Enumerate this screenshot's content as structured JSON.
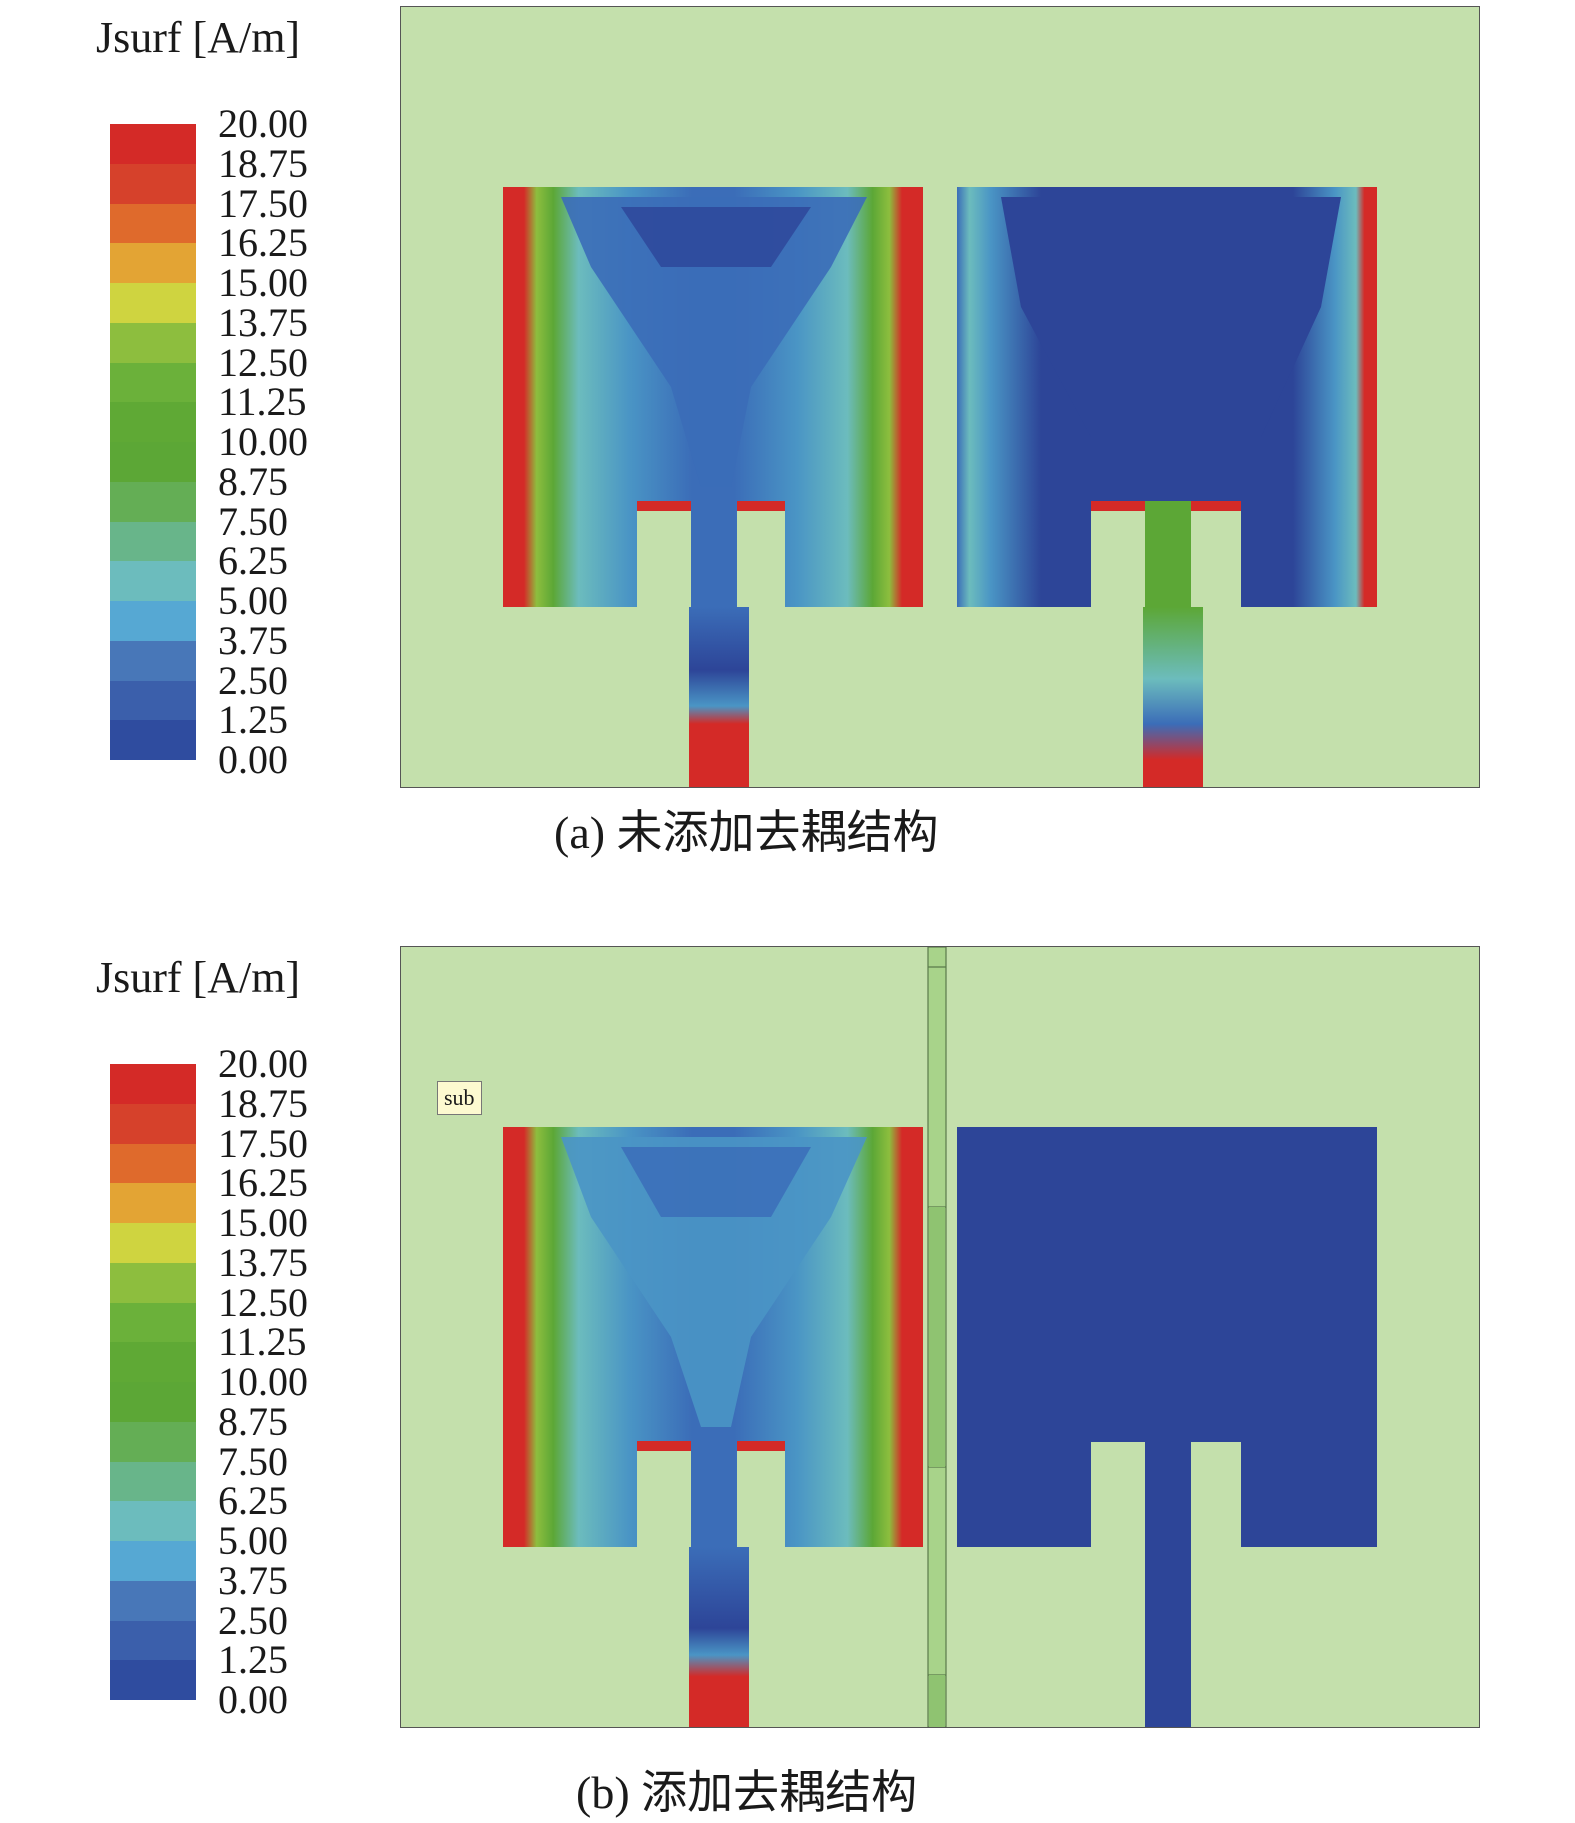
{
  "colors": {
    "substrate": "#c4e0ac",
    "legend": [
      "#d42a27",
      "#d6412b",
      "#df6a2c",
      "#e3a434",
      "#cfd440",
      "#8dbe3e",
      "#6bb13a",
      "#5fa935",
      "#5ca736",
      "#64ae55",
      "#68b58a",
      "#6cbcbd",
      "#56a8d3",
      "#4877b8",
      "#3b5fab",
      "#2f4c9f",
      "#2d4598"
    ],
    "field": {
      "low": "#2d4598",
      "mid_low": "#3b6db8",
      "mid": "#4a95c5",
      "mid_high": "#6cbcbd",
      "green": "#5ca736",
      "high": "#d42a27"
    }
  },
  "panels": [
    {
      "legend_title": "Jsurf [A/m]",
      "legend_ticks": [
        "20.00",
        "18.75",
        "17.50",
        "16.25",
        "15.00",
        "13.75",
        "12.50",
        "11.25",
        "10.00",
        "8.75",
        "7.50",
        "6.25",
        "5.00",
        "3.75",
        "2.50",
        "1.25",
        "0.00"
      ],
      "caption": "(a) 未添加去耦结构"
    },
    {
      "legend_title": "Jsurf [A/m]",
      "legend_ticks": [
        "20.00",
        "18.75",
        "17.50",
        "16.25",
        "15.00",
        "13.75",
        "12.50",
        "11.25",
        "10.00",
        "8.75",
        "7.50",
        "6.25",
        "5.00",
        "3.75",
        "2.50",
        "1.25",
        "0.00"
      ],
      "caption": "(b) 添加去耦结构",
      "sub_label": "sub"
    }
  ]
}
